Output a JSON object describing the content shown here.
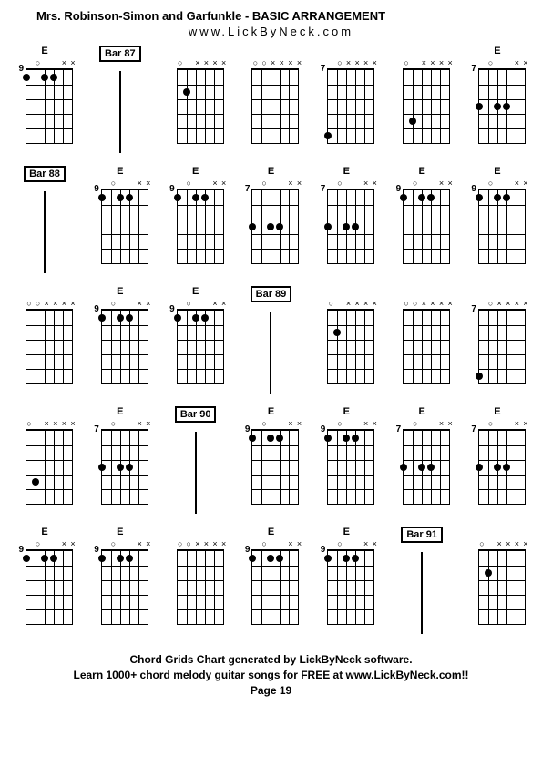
{
  "title": "Mrs. Robinson-Simon and Garfunkle - BASIC ARRANGEMENT",
  "subtitle": "www.LickByNeck.com",
  "footer_line1": "Chord Grids Chart generated by LickByNeck software.",
  "footer_line2": "Learn 1000+ chord melody guitar songs for FREE at www.LickByNeck.com!!",
  "page_label": "Page 19",
  "frets": 5,
  "strings": 6,
  "rows": [
    [
      {
        "type": "chord",
        "label": "E",
        "fret": "9",
        "marks": [
          "",
          "o",
          "",
          "",
          "x",
          "x"
        ],
        "dots": [
          [
            0,
            1
          ],
          [
            2,
            1
          ],
          [
            3,
            1
          ]
        ]
      },
      {
        "type": "bar",
        "label": "Bar 87"
      },
      {
        "type": "chord",
        "label": "",
        "fret": "",
        "marks": [
          "o",
          "",
          "x",
          "x",
          "x",
          "x"
        ],
        "dots": [
          [
            1,
            2
          ]
        ]
      },
      {
        "type": "chord",
        "label": "",
        "fret": "",
        "marks": [
          "o",
          "o",
          "x",
          "x",
          "x",
          "x"
        ],
        "dots": []
      },
      {
        "type": "chord",
        "label": "",
        "fret": "7",
        "marks": [
          "",
          "o",
          "x",
          "x",
          "x",
          "x"
        ],
        "dots": [
          [
            0,
            5
          ]
        ]
      },
      {
        "type": "chord",
        "label": "",
        "fret": "",
        "marks": [
          "o",
          "",
          "x",
          "x",
          "x",
          "x"
        ],
        "dots": [
          [
            1,
            4
          ]
        ]
      },
      {
        "type": "chord",
        "label": "E",
        "fret": "7",
        "marks": [
          "",
          "o",
          "",
          "",
          "x",
          "x"
        ],
        "dots": [
          [
            0,
            3
          ],
          [
            2,
            3
          ],
          [
            3,
            3
          ]
        ]
      }
    ],
    [
      {
        "type": "bar",
        "label": "Bar 88"
      },
      {
        "type": "chord",
        "label": "E",
        "fret": "9",
        "marks": [
          "",
          "o",
          "",
          "",
          "x",
          "x"
        ],
        "dots": [
          [
            0,
            1
          ],
          [
            2,
            1
          ],
          [
            3,
            1
          ]
        ]
      },
      {
        "type": "chord",
        "label": "E",
        "fret": "9",
        "marks": [
          "",
          "o",
          "",
          "",
          "x",
          "x"
        ],
        "dots": [
          [
            0,
            1
          ],
          [
            2,
            1
          ],
          [
            3,
            1
          ]
        ]
      },
      {
        "type": "chord",
        "label": "E",
        "fret": "7",
        "marks": [
          "",
          "o",
          "",
          "",
          "x",
          "x"
        ],
        "dots": [
          [
            0,
            3
          ],
          [
            2,
            3
          ],
          [
            3,
            3
          ]
        ]
      },
      {
        "type": "chord",
        "label": "E",
        "fret": "7",
        "marks": [
          "",
          "o",
          "",
          "",
          "x",
          "x"
        ],
        "dots": [
          [
            0,
            3
          ],
          [
            2,
            3
          ],
          [
            3,
            3
          ]
        ]
      },
      {
        "type": "chord",
        "label": "E",
        "fret": "9",
        "marks": [
          "",
          "o",
          "",
          "",
          "x",
          "x"
        ],
        "dots": [
          [
            0,
            1
          ],
          [
            2,
            1
          ],
          [
            3,
            1
          ]
        ]
      },
      {
        "type": "chord",
        "label": "E",
        "fret": "9",
        "marks": [
          "",
          "o",
          "",
          "",
          "x",
          "x"
        ],
        "dots": [
          [
            0,
            1
          ],
          [
            2,
            1
          ],
          [
            3,
            1
          ]
        ]
      }
    ],
    [
      {
        "type": "chord",
        "label": "",
        "fret": "",
        "marks": [
          "o",
          "o",
          "x",
          "x",
          "x",
          "x"
        ],
        "dots": []
      },
      {
        "type": "chord",
        "label": "E",
        "fret": "9",
        "marks": [
          "",
          "o",
          "",
          "",
          "x",
          "x"
        ],
        "dots": [
          [
            0,
            1
          ],
          [
            2,
            1
          ],
          [
            3,
            1
          ]
        ]
      },
      {
        "type": "chord",
        "label": "E",
        "fret": "9",
        "marks": [
          "",
          "o",
          "",
          "",
          "x",
          "x"
        ],
        "dots": [
          [
            0,
            1
          ],
          [
            2,
            1
          ],
          [
            3,
            1
          ]
        ]
      },
      {
        "type": "bar",
        "label": "Bar 89"
      },
      {
        "type": "chord",
        "label": "",
        "fret": "",
        "marks": [
          "o",
          "",
          "x",
          "x",
          "x",
          "x"
        ],
        "dots": [
          [
            1,
            2
          ]
        ]
      },
      {
        "type": "chord",
        "label": "",
        "fret": "",
        "marks": [
          "o",
          "o",
          "x",
          "x",
          "x",
          "x"
        ],
        "dots": []
      },
      {
        "type": "chord",
        "label": "",
        "fret": "7",
        "marks": [
          "",
          "o",
          "x",
          "x",
          "x",
          "x"
        ],
        "dots": [
          [
            0,
            5
          ]
        ]
      }
    ],
    [
      {
        "type": "chord",
        "label": "",
        "fret": "",
        "marks": [
          "o",
          "",
          "x",
          "x",
          "x",
          "x"
        ],
        "dots": [
          [
            1,
            4
          ]
        ]
      },
      {
        "type": "chord",
        "label": "E",
        "fret": "7",
        "marks": [
          "",
          "o",
          "",
          "",
          "x",
          "x"
        ],
        "dots": [
          [
            0,
            3
          ],
          [
            2,
            3
          ],
          [
            3,
            3
          ]
        ]
      },
      {
        "type": "bar",
        "label": "Bar 90"
      },
      {
        "type": "chord",
        "label": "E",
        "fret": "9",
        "marks": [
          "",
          "o",
          "",
          "",
          "x",
          "x"
        ],
        "dots": [
          [
            0,
            1
          ],
          [
            2,
            1
          ],
          [
            3,
            1
          ]
        ]
      },
      {
        "type": "chord",
        "label": "E",
        "fret": "9",
        "marks": [
          "",
          "o",
          "",
          "",
          "x",
          "x"
        ],
        "dots": [
          [
            0,
            1
          ],
          [
            2,
            1
          ],
          [
            3,
            1
          ]
        ]
      },
      {
        "type": "chord",
        "label": "E",
        "fret": "7",
        "marks": [
          "",
          "o",
          "",
          "",
          "x",
          "x"
        ],
        "dots": [
          [
            0,
            3
          ],
          [
            2,
            3
          ],
          [
            3,
            3
          ]
        ]
      },
      {
        "type": "chord",
        "label": "E",
        "fret": "7",
        "marks": [
          "",
          "o",
          "",
          "",
          "x",
          "x"
        ],
        "dots": [
          [
            0,
            3
          ],
          [
            2,
            3
          ],
          [
            3,
            3
          ]
        ]
      }
    ],
    [
      {
        "type": "chord",
        "label": "E",
        "fret": "9",
        "marks": [
          "",
          "o",
          "",
          "",
          "x",
          "x"
        ],
        "dots": [
          [
            0,
            1
          ],
          [
            2,
            1
          ],
          [
            3,
            1
          ]
        ]
      },
      {
        "type": "chord",
        "label": "E",
        "fret": "9",
        "marks": [
          "",
          "o",
          "",
          "",
          "x",
          "x"
        ],
        "dots": [
          [
            0,
            1
          ],
          [
            2,
            1
          ],
          [
            3,
            1
          ]
        ]
      },
      {
        "type": "chord",
        "label": "",
        "fret": "",
        "marks": [
          "o",
          "o",
          "x",
          "x",
          "x",
          "x"
        ],
        "dots": []
      },
      {
        "type": "chord",
        "label": "E",
        "fret": "9",
        "marks": [
          "",
          "o",
          "",
          "",
          "x",
          "x"
        ],
        "dots": [
          [
            0,
            1
          ],
          [
            2,
            1
          ],
          [
            3,
            1
          ]
        ]
      },
      {
        "type": "chord",
        "label": "E",
        "fret": "9",
        "marks": [
          "",
          "o",
          "",
          "",
          "x",
          "x"
        ],
        "dots": [
          [
            0,
            1
          ],
          [
            2,
            1
          ],
          [
            3,
            1
          ]
        ]
      },
      {
        "type": "bar",
        "label": "Bar 91"
      },
      {
        "type": "chord",
        "label": "",
        "fret": "",
        "marks": [
          "o",
          "",
          "x",
          "x",
          "x",
          "x"
        ],
        "dots": [
          [
            1,
            2
          ]
        ]
      }
    ]
  ]
}
